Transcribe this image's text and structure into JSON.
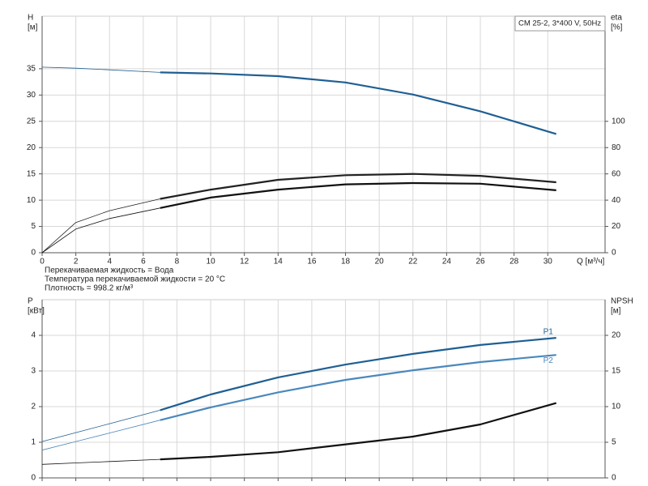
{
  "chart_data": [
    {
      "type": "line",
      "title": "CM 25-2, 3*400 V, 50Hz",
      "ylabel": [
        "H",
        "[м]"
      ],
      "y2label": [
        "eta",
        "[%]"
      ],
      "xlabel": "Q [м³/ч]",
      "annotations": [
        "Перекачиваемая жидкость = Вода",
        "Температура перекачиваемой жидкости = 20 °C",
        "Плотность = 998.2 кг/м³"
      ],
      "x": [
        0,
        2,
        4,
        7,
        10,
        14,
        18,
        22,
        26,
        30.5
      ],
      "xlim": [
        0,
        33.4
      ],
      "xticks": [
        0,
        2,
        4,
        6,
        8,
        10,
        12,
        14,
        16,
        18,
        20,
        22,
        24,
        26,
        28,
        30
      ],
      "ylim": [
        0,
        45
      ],
      "yticks": [
        0,
        5,
        10,
        15,
        20,
        25,
        30,
        35
      ],
      "y2lim": [
        0,
        180
      ],
      "y2ticks": [
        0,
        20,
        40,
        60,
        80,
        100
      ],
      "grid": true,
      "series": [
        {
          "color": "#1f5f93",
          "values": [
            35.3,
            35.1,
            34.8,
            34.3,
            34.1,
            33.6,
            32.4,
            30.1,
            26.9,
            22.6
          ]
        },
        {
          "color": "#222222",
          "axis": "y2",
          "values": [
            0,
            23,
            32,
            41,
            48,
            55.5,
            59,
            60,
            58.5,
            53.6
          ]
        },
        {
          "color": "#111111",
          "axis": "y2",
          "values": [
            0,
            18,
            26,
            34,
            42,
            48,
            52,
            53,
            52.5,
            47.5
          ]
        }
      ]
    },
    {
      "type": "line",
      "ylabel": [
        "P",
        "[кВт]"
      ],
      "y2label": [
        "NPSH",
        "[м]"
      ],
      "x": [
        0,
        2,
        4,
        7,
        10,
        14,
        18,
        22,
        26,
        30.5
      ],
      "xlim": [
        0,
        33.4
      ],
      "xticks": [
        0,
        2,
        4,
        6,
        8,
        10,
        12,
        14,
        16,
        18,
        20,
        22,
        24,
        26,
        28,
        30
      ],
      "ylim": [
        0,
        5
      ],
      "yticks": [
        0,
        1,
        2,
        3,
        4
      ],
      "y2lim": [
        0,
        25
      ],
      "y2ticks": [
        0,
        5,
        10,
        15,
        20
      ],
      "grid": true,
      "series": [
        {
          "name": "P1",
          "color": "#1f5f93",
          "values": [
            1.02,
            1.27,
            1.52,
            1.9,
            2.34,
            2.82,
            3.18,
            3.48,
            3.73,
            3.93
          ]
        },
        {
          "name": "P2",
          "color": "#4a88bd",
          "values": [
            0.78,
            1.02,
            1.26,
            1.62,
            1.98,
            2.4,
            2.75,
            3.02,
            3.25,
            3.45
          ]
        },
        {
          "color": "#111111",
          "axis": "y2",
          "values": [
            1.9,
            2.1,
            2.3,
            2.6,
            2.95,
            3.6,
            4.7,
            5.8,
            7.5,
            10.5
          ]
        }
      ]
    }
  ]
}
